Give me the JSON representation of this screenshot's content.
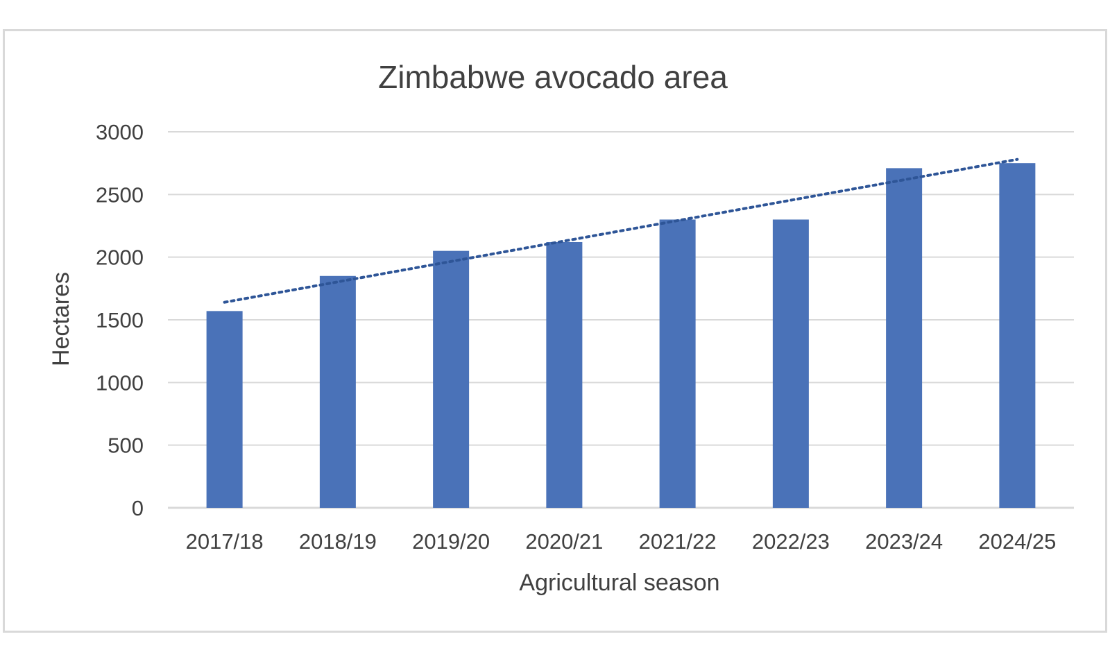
{
  "chart_data": {
    "type": "bar",
    "title": "Zimbabwe avocado area",
    "xlabel": "Agricultural season",
    "ylabel": "Hectares",
    "categories": [
      "2017/18",
      "2018/19",
      "2019/20",
      "2020/21",
      "2021/22",
      "2022/23",
      "2023/24",
      "2024/25"
    ],
    "series": [
      {
        "values": [
          1570,
          1850,
          2050,
          2120,
          2300,
          2300,
          2710,
          2750
        ]
      }
    ],
    "trendline": {
      "type": "linear",
      "style": "dotted",
      "start": 1640,
      "end": 2780
    },
    "ylim": [
      0,
      3000
    ],
    "yticks": [
      0,
      500,
      1000,
      1500,
      2000,
      2500,
      3000
    ],
    "grid": true,
    "legend": "none",
    "colors": {
      "bar": "#4a72b8",
      "trendline": "#2e5597",
      "grid": "#d9d9d9",
      "text": "#404040",
      "border": "#d9d9d9"
    }
  }
}
